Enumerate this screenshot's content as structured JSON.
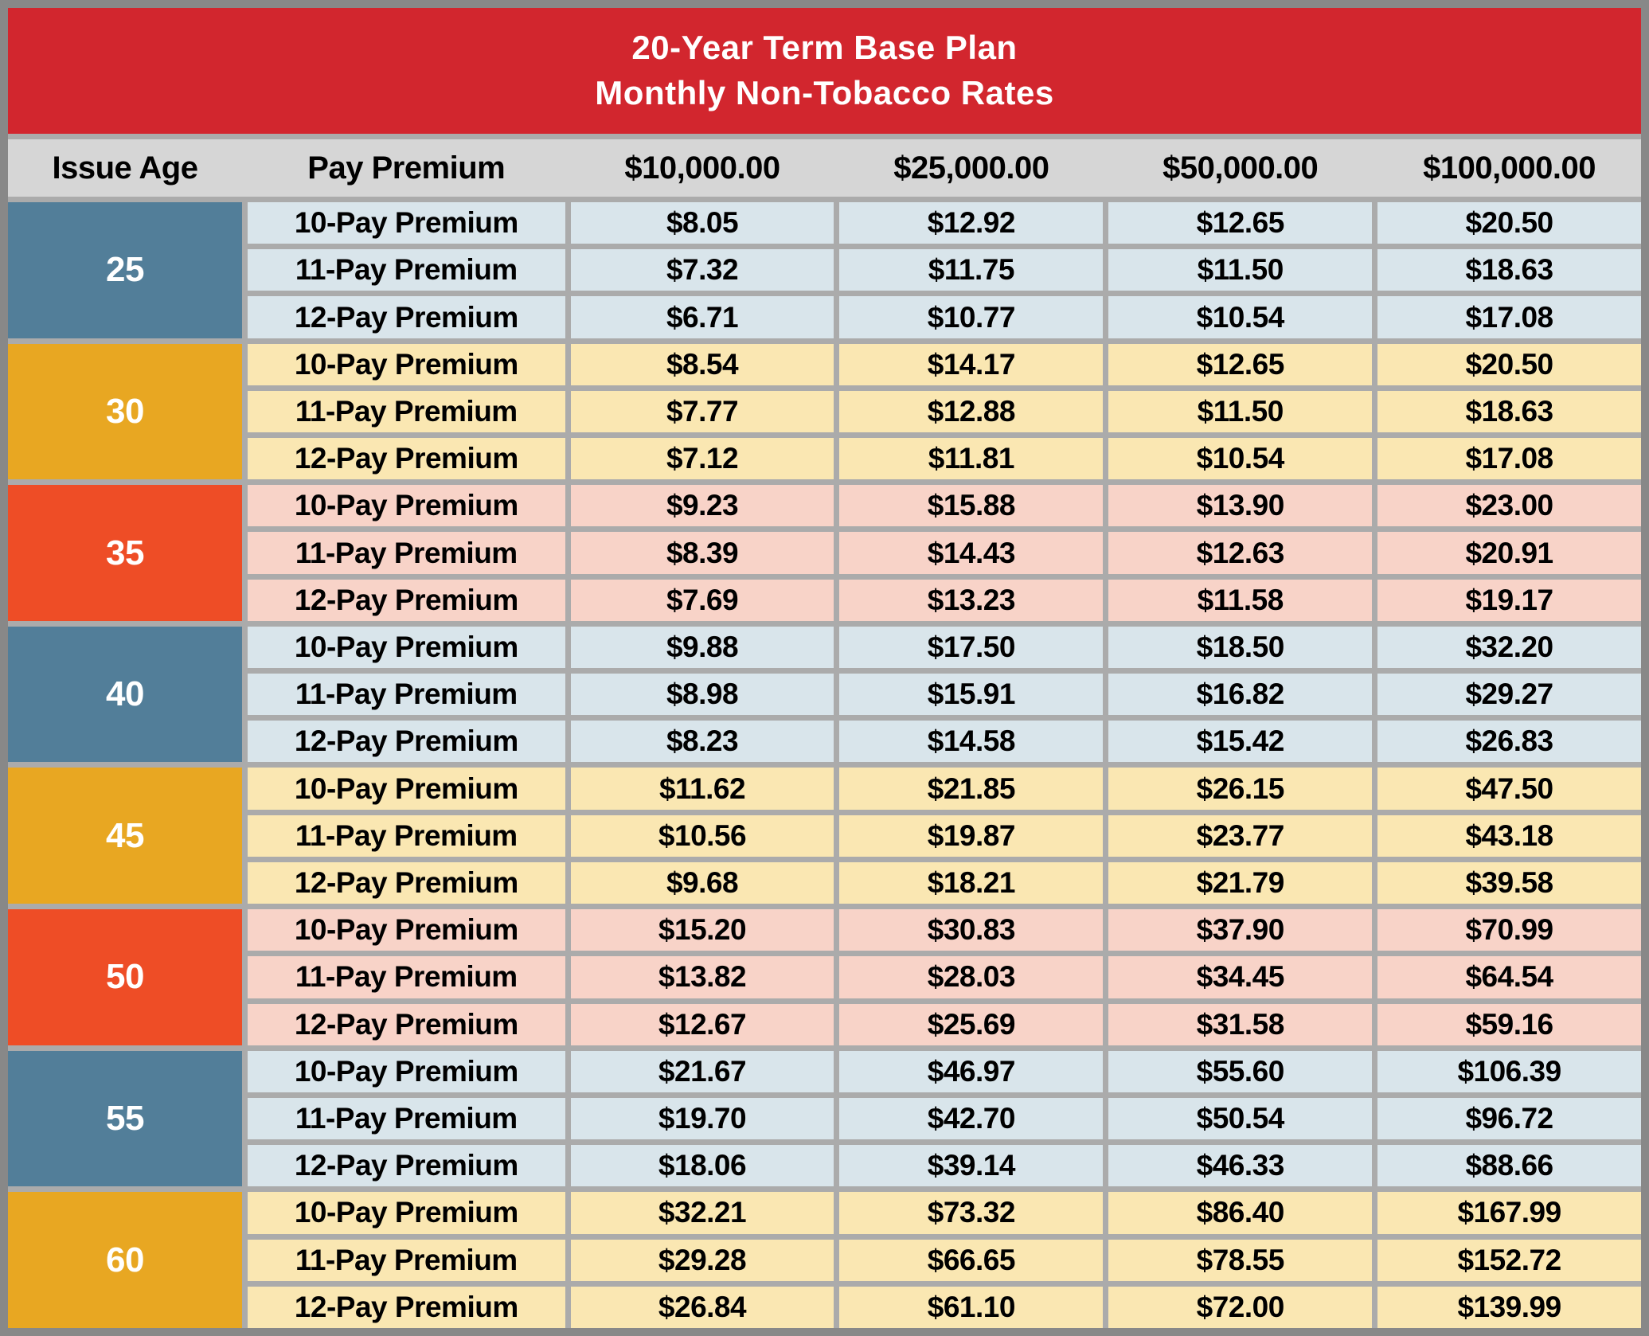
{
  "chart_data": {
    "type": "table",
    "title": "20-Year Term Base Plan",
    "subtitle": "Monthly Non-Tobacco Rates",
    "columns": [
      "Issue Age",
      "Pay Premium",
      "$10,000.00",
      "$25,000.00",
      "$50,000.00",
      "$100,000.00"
    ],
    "age_groups": [
      {
        "age": "25",
        "theme": "blue",
        "rows": [
          {
            "label": "10-Pay Premium",
            "values": [
              "$8.05",
              "$12.92",
              "$12.65",
              "$20.50"
            ]
          },
          {
            "label": "11-Pay Premium",
            "values": [
              "$7.32",
              "$11.75",
              "$11.50",
              "$18.63"
            ]
          },
          {
            "label": "12-Pay Premium",
            "values": [
              "$6.71",
              "$10.77",
              "$10.54",
              "$17.08"
            ]
          }
        ]
      },
      {
        "age": "30",
        "theme": "orange",
        "rows": [
          {
            "label": "10-Pay Premium",
            "values": [
              "$8.54",
              "$14.17",
              "$12.65",
              "$20.50"
            ]
          },
          {
            "label": "11-Pay Premium",
            "values": [
              "$7.77",
              "$12.88",
              "$11.50",
              "$18.63"
            ]
          },
          {
            "label": "12-Pay Premium",
            "values": [
              "$7.12",
              "$11.81",
              "$10.54",
              "$17.08"
            ]
          }
        ]
      },
      {
        "age": "35",
        "theme": "red",
        "rows": [
          {
            "label": "10-Pay Premium",
            "values": [
              "$9.23",
              "$15.88",
              "$13.90",
              "$23.00"
            ]
          },
          {
            "label": "11-Pay Premium",
            "values": [
              "$8.39",
              "$14.43",
              "$12.63",
              "$20.91"
            ]
          },
          {
            "label": "12-Pay Premium",
            "values": [
              "$7.69",
              "$13.23",
              "$11.58",
              "$19.17"
            ]
          }
        ]
      },
      {
        "age": "40",
        "theme": "blue",
        "rows": [
          {
            "label": "10-Pay Premium",
            "values": [
              "$9.88",
              "$17.50",
              "$18.50",
              "$32.20"
            ]
          },
          {
            "label": "11-Pay Premium",
            "values": [
              "$8.98",
              "$15.91",
              "$16.82",
              "$29.27"
            ]
          },
          {
            "label": "12-Pay Premium",
            "values": [
              "$8.23",
              "$14.58",
              "$15.42",
              "$26.83"
            ]
          }
        ]
      },
      {
        "age": "45",
        "theme": "orange",
        "rows": [
          {
            "label": "10-Pay Premium",
            "values": [
              "$11.62",
              "$21.85",
              "$26.15",
              "$47.50"
            ]
          },
          {
            "label": "11-Pay Premium",
            "values": [
              "$10.56",
              "$19.87",
              "$23.77",
              "$43.18"
            ]
          },
          {
            "label": "12-Pay Premium",
            "values": [
              "$9.68",
              "$18.21",
              "$21.79",
              "$39.58"
            ]
          }
        ]
      },
      {
        "age": "50",
        "theme": "red",
        "rows": [
          {
            "label": "10-Pay Premium",
            "values": [
              "$15.20",
              "$30.83",
              "$37.90",
              "$70.99"
            ]
          },
          {
            "label": "11-Pay Premium",
            "values": [
              "$13.82",
              "$28.03",
              "$34.45",
              "$64.54"
            ]
          },
          {
            "label": "12-Pay Premium",
            "values": [
              "$12.67",
              "$25.69",
              "$31.58",
              "$59.16"
            ]
          }
        ]
      },
      {
        "age": "55",
        "theme": "blue",
        "rows": [
          {
            "label": "10-Pay Premium",
            "values": [
              "$21.67",
              "$46.97",
              "$55.60",
              "$106.39"
            ]
          },
          {
            "label": "11-Pay Premium",
            "values": [
              "$19.70",
              "$42.70",
              "$50.54",
              "$96.72"
            ]
          },
          {
            "label": "12-Pay Premium",
            "values": [
              "$18.06",
              "$39.14",
              "$46.33",
              "$88.66"
            ]
          }
        ]
      },
      {
        "age": "60",
        "theme": "orange",
        "rows": [
          {
            "label": "10-Pay Premium",
            "values": [
              "$32.21",
              "$73.32",
              "$86.40",
              "$167.99"
            ]
          },
          {
            "label": "11-Pay Premium",
            "values": [
              "$29.28",
              "$66.65",
              "$78.55",
              "$152.72"
            ]
          },
          {
            "label": "12-Pay Premium",
            "values": [
              "$26.84",
              "$61.10",
              "$72.00",
              "$139.99"
            ]
          }
        ]
      }
    ]
  },
  "colors": {
    "title_red": "#D2262E",
    "header_gray": "#D6D6D6",
    "gutter_gray": "#ABABAB",
    "frame_gray": "#888888",
    "age_blue": "#527E99",
    "age_orange": "#E8A722",
    "age_red": "#EE4D26",
    "tint_blue": "#D9E5EB",
    "tint_orange": "#FAE7B2",
    "tint_red": "#F8D3C8"
  }
}
